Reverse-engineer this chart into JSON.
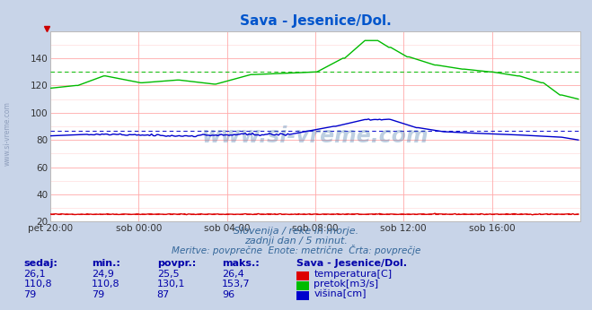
{
  "title": "Sava - Jesenice/Dol.",
  "title_color": "#0055cc",
  "bg_color": "#c8d4e8",
  "plot_bg_color": "#ffffff",
  "xlabel_ticks": [
    "pet 20:00",
    "sob 00:00",
    "sob 04:00",
    "sob 08:00",
    "sob 12:00",
    "sob 16:00"
  ],
  "ylim": [
    20,
    160
  ],
  "xlim": [
    0,
    288
  ],
  "temp_color": "#dd0000",
  "pretok_color": "#00bb00",
  "visina_color": "#0000cc",
  "temp_avg": 25.5,
  "pretok_avg": 130.1,
  "visina_avg": 87,
  "subtitle1": "Slovenija / reke in morje.",
  "subtitle2": "zadnji dan / 5 minut.",
  "subtitle3": "Meritve: povprečne  Enote: metrične  Črta: povprečje",
  "subtitle_color": "#336699",
  "table_headers": [
    "sedaj:",
    "min.:",
    "povpr.:",
    "maks.:"
  ],
  "table_label": "Sava - Jesenice/Dol.",
  "row1": [
    "26,1",
    "24,9",
    "25,5",
    "26,4"
  ],
  "row2": [
    "110,8",
    "110,8",
    "130,1",
    "153,7"
  ],
  "row3": [
    "79",
    "79",
    "87",
    "96"
  ],
  "legend_labels": [
    "temperatura[C]",
    "pretok[m3/s]",
    "višina[cm]"
  ],
  "table_color": "#0000aa",
  "grid_major_color": "#ffaaaa",
  "grid_minor_color": "#ffdddd",
  "yticks": [
    20,
    40,
    60,
    80,
    100,
    120,
    140
  ]
}
